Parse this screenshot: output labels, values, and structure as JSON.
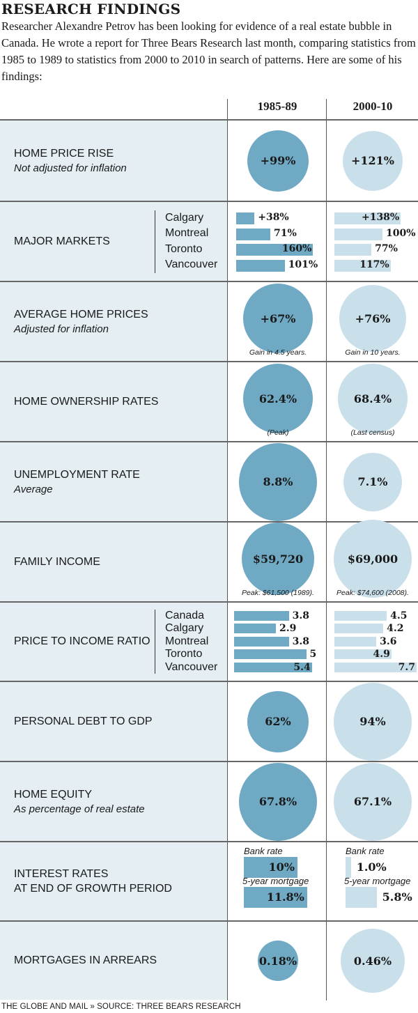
{
  "title": "RESEARCH FINDINGS",
  "intro": "Researcher Alexandre Petrov has been looking for evidence of a real estate bubble in Canada. He wrote a report for Three Bears Research last month, comparing statistics from 1985 to 1989 to statistics from 2000 to 2010 in search of patterns. Here are some of his findings:",
  "columns": [
    "1985-89",
    "2000-10"
  ],
  "colors": {
    "period1": "#6fa9c4",
    "period2": "#c9e0eb",
    "panel": "#e4eef3"
  },
  "footer": "THE GLOBE AND MAIL » SOURCE: THREE BEARS RESEARCH",
  "chart_data": {
    "type": "table",
    "rows": [
      {
        "label": "HOME PRICE RISE",
        "sublabel": "Not adjusted for inflation",
        "kind": "circle",
        "values": [
          "+99%",
          "+121%"
        ]
      },
      {
        "label": "MAJOR MARKETS",
        "kind": "bars",
        "categories": [
          "Calgary",
          "Montreal",
          "Toronto",
          "Vancouver"
        ],
        "series": [
          {
            "values": [
              38,
              71,
              160,
              101
            ],
            "labels": [
              "+38%",
              "71%",
              "160%",
              "101%"
            ]
          },
          {
            "values": [
              138,
              100,
              77,
              117
            ],
            "labels": [
              "+138%",
              "100%",
              "77%",
              "117%"
            ]
          }
        ]
      },
      {
        "label": "AVERAGE HOME PRICES",
        "sublabel": "Adjusted for inflation",
        "kind": "circle",
        "values": [
          "+67%",
          "+76%"
        ],
        "captions": [
          "Gain in 4.5 years.",
          "Gain in 10 years."
        ]
      },
      {
        "label": "HOME OWNERSHIP RATES",
        "kind": "circle",
        "values": [
          "62.4%",
          "68.4%"
        ],
        "captions": [
          "(Peak)",
          "(Last census)"
        ]
      },
      {
        "label": "UNEMPLOYMENT RATE",
        "sublabel": "Average",
        "kind": "circle",
        "values": [
          "8.8%",
          "7.1%"
        ]
      },
      {
        "label": "FAMILY INCOME",
        "kind": "circle",
        "values": [
          "$59,720",
          "$69,000"
        ],
        "captions": [
          "Peak: $61,500 (1989).",
          "Peak: $74,600 (2008)."
        ]
      },
      {
        "label": "PRICE TO INCOME RATIO",
        "kind": "bars",
        "categories": [
          "Canada",
          "Calgary",
          "Montreal",
          "Toronto",
          "Vancouver"
        ],
        "series": [
          {
            "values": [
              3.8,
              2.9,
              3.8,
              5,
              5.4
            ],
            "labels": [
              "3.8",
              "2.9",
              "3.8",
              "5",
              "5.4"
            ]
          },
          {
            "values": [
              4.5,
              4.2,
              3.6,
              4.9,
              7.7
            ],
            "labels": [
              "4.5",
              "4.2",
              "3.6",
              "4.9",
              "7.7"
            ]
          }
        ]
      },
      {
        "label": "PERSONAL DEBT TO GDP",
        "kind": "circle",
        "values": [
          "62%",
          "94%"
        ]
      },
      {
        "label": "HOME EQUITY",
        "sublabel": "As percentage of real estate",
        "kind": "circle",
        "values": [
          "67.8%",
          "67.1%"
        ]
      },
      {
        "label": "INTEREST RATES",
        "sublabel2": "AT END OF GROWTH PERIOD",
        "kind": "rates",
        "categories": [
          "Bank rate",
          "5-year mortgage"
        ],
        "series": [
          {
            "values": [
              10,
              11.8
            ],
            "labels": [
              "10%",
              "11.8%"
            ]
          },
          {
            "values": [
              1.0,
              5.8
            ],
            "labels": [
              "1.0%",
              "5.8%"
            ]
          }
        ]
      },
      {
        "label": "MORTGAGES IN ARREARS",
        "kind": "circle",
        "values": [
          "0.18%",
          "0.46%"
        ]
      }
    ]
  }
}
